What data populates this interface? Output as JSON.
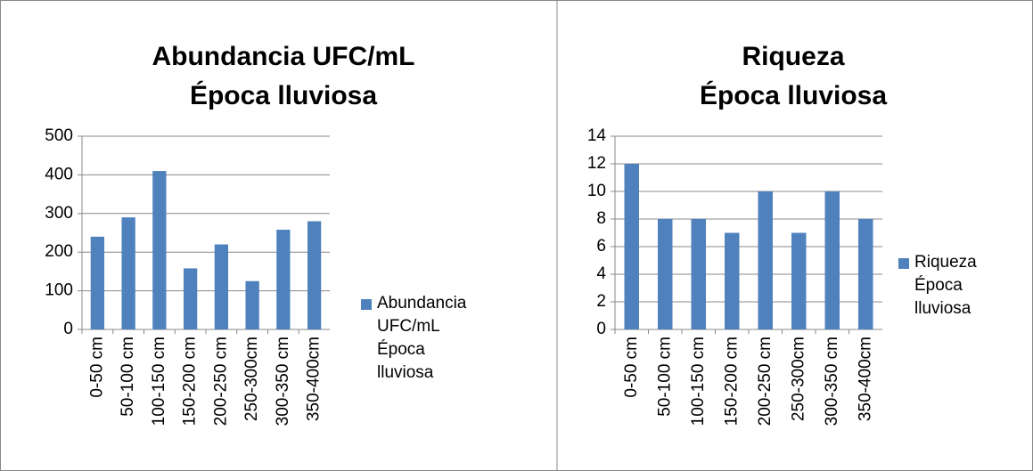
{
  "chart_data": [
    {
      "type": "bar",
      "title": "Abundancia UFC/mL\nÉpoca lluviosa",
      "categories": [
        "0-50 cm",
        "50-100 cm",
        "100-150 cm",
        "150-200 cm",
        "200-250 cm",
        "250-300cm",
        "300-350 cm",
        "350-400cm"
      ],
      "series": [
        {
          "name": "Abundancia UFC/mL Época lluviosa",
          "color": "#4f81bd",
          "values": [
            240,
            290,
            410,
            158,
            220,
            125,
            258,
            280
          ]
        }
      ],
      "ylim": [
        0,
        500
      ],
      "yticks": [
        0,
        100,
        200,
        300,
        400,
        500
      ],
      "grid": true,
      "legend": "right"
    },
    {
      "type": "bar",
      "title": "Riqueza\nÉpoca lluviosa",
      "categories": [
        "0-50 cm",
        "50-100 cm",
        "100-150 cm",
        "150-200 cm",
        "200-250 cm",
        "250-300cm",
        "300-350 cm",
        "350-400cm"
      ],
      "series": [
        {
          "name": "Riqueza Época lluviosa",
          "color": "#4f81bd",
          "values": [
            12,
            8,
            8,
            7,
            10,
            7,
            10,
            8
          ]
        }
      ],
      "ylim": [
        0,
        14
      ],
      "yticks": [
        0,
        2,
        4,
        6,
        8,
        10,
        12,
        14
      ],
      "grid": true,
      "legend": "right"
    }
  ]
}
